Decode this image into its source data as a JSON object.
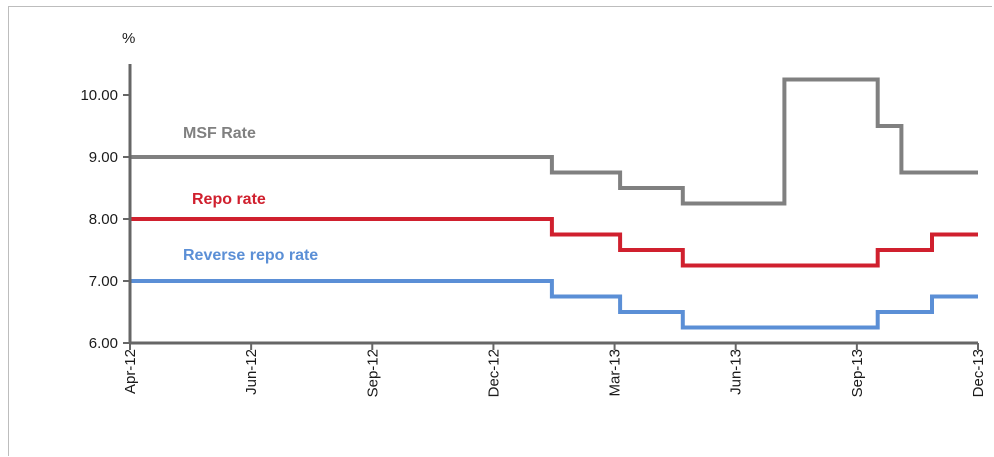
{
  "chart_data": {
    "type": "line",
    "step": true,
    "unit_label": "%",
    "title": "",
    "xlabel": "",
    "ylabel": "",
    "ylim": [
      6.0,
      10.5
    ],
    "yticks": [
      "6.00",
      "7.00",
      "8.00",
      "9.00",
      "10.00"
    ],
    "xticks": [
      "Apr-12",
      "Jun-12",
      "Sep-12",
      "Dec-12",
      "Mar-13",
      "Jun-13",
      "Sep-13",
      "Dec-13"
    ],
    "xlim": [
      "2012-04-01",
      "2013-12-01"
    ],
    "grid": false,
    "series": [
      {
        "name": "MSF Rate",
        "color": "#808080",
        "points": [
          [
            "2012-04-01",
            9.0
          ],
          [
            "2013-01-29",
            8.75
          ],
          [
            "2013-03-19",
            8.5
          ],
          [
            "2013-05-03",
            8.25
          ],
          [
            "2013-07-15",
            10.25
          ],
          [
            "2013-09-20",
            9.5
          ],
          [
            "2013-10-07",
            8.75
          ],
          [
            "2013-12-01",
            8.75
          ]
        ]
      },
      {
        "name": "Repo rate",
        "color": "#d0202e",
        "points": [
          [
            "2012-04-01",
            8.0
          ],
          [
            "2013-01-29",
            7.75
          ],
          [
            "2013-03-19",
            7.5
          ],
          [
            "2013-05-03",
            7.25
          ],
          [
            "2013-09-20",
            7.5
          ],
          [
            "2013-10-29",
            7.75
          ],
          [
            "2013-12-01",
            7.75
          ]
        ]
      },
      {
        "name": "Reverse repo rate",
        "color": "#5b8fd6",
        "points": [
          [
            "2012-04-01",
            7.0
          ],
          [
            "2013-01-29",
            6.75
          ],
          [
            "2013-03-19",
            6.5
          ],
          [
            "2013-05-03",
            6.25
          ],
          [
            "2013-09-20",
            6.5
          ],
          [
            "2013-10-29",
            6.75
          ],
          [
            "2013-12-01",
            6.75
          ]
        ]
      }
    ]
  }
}
